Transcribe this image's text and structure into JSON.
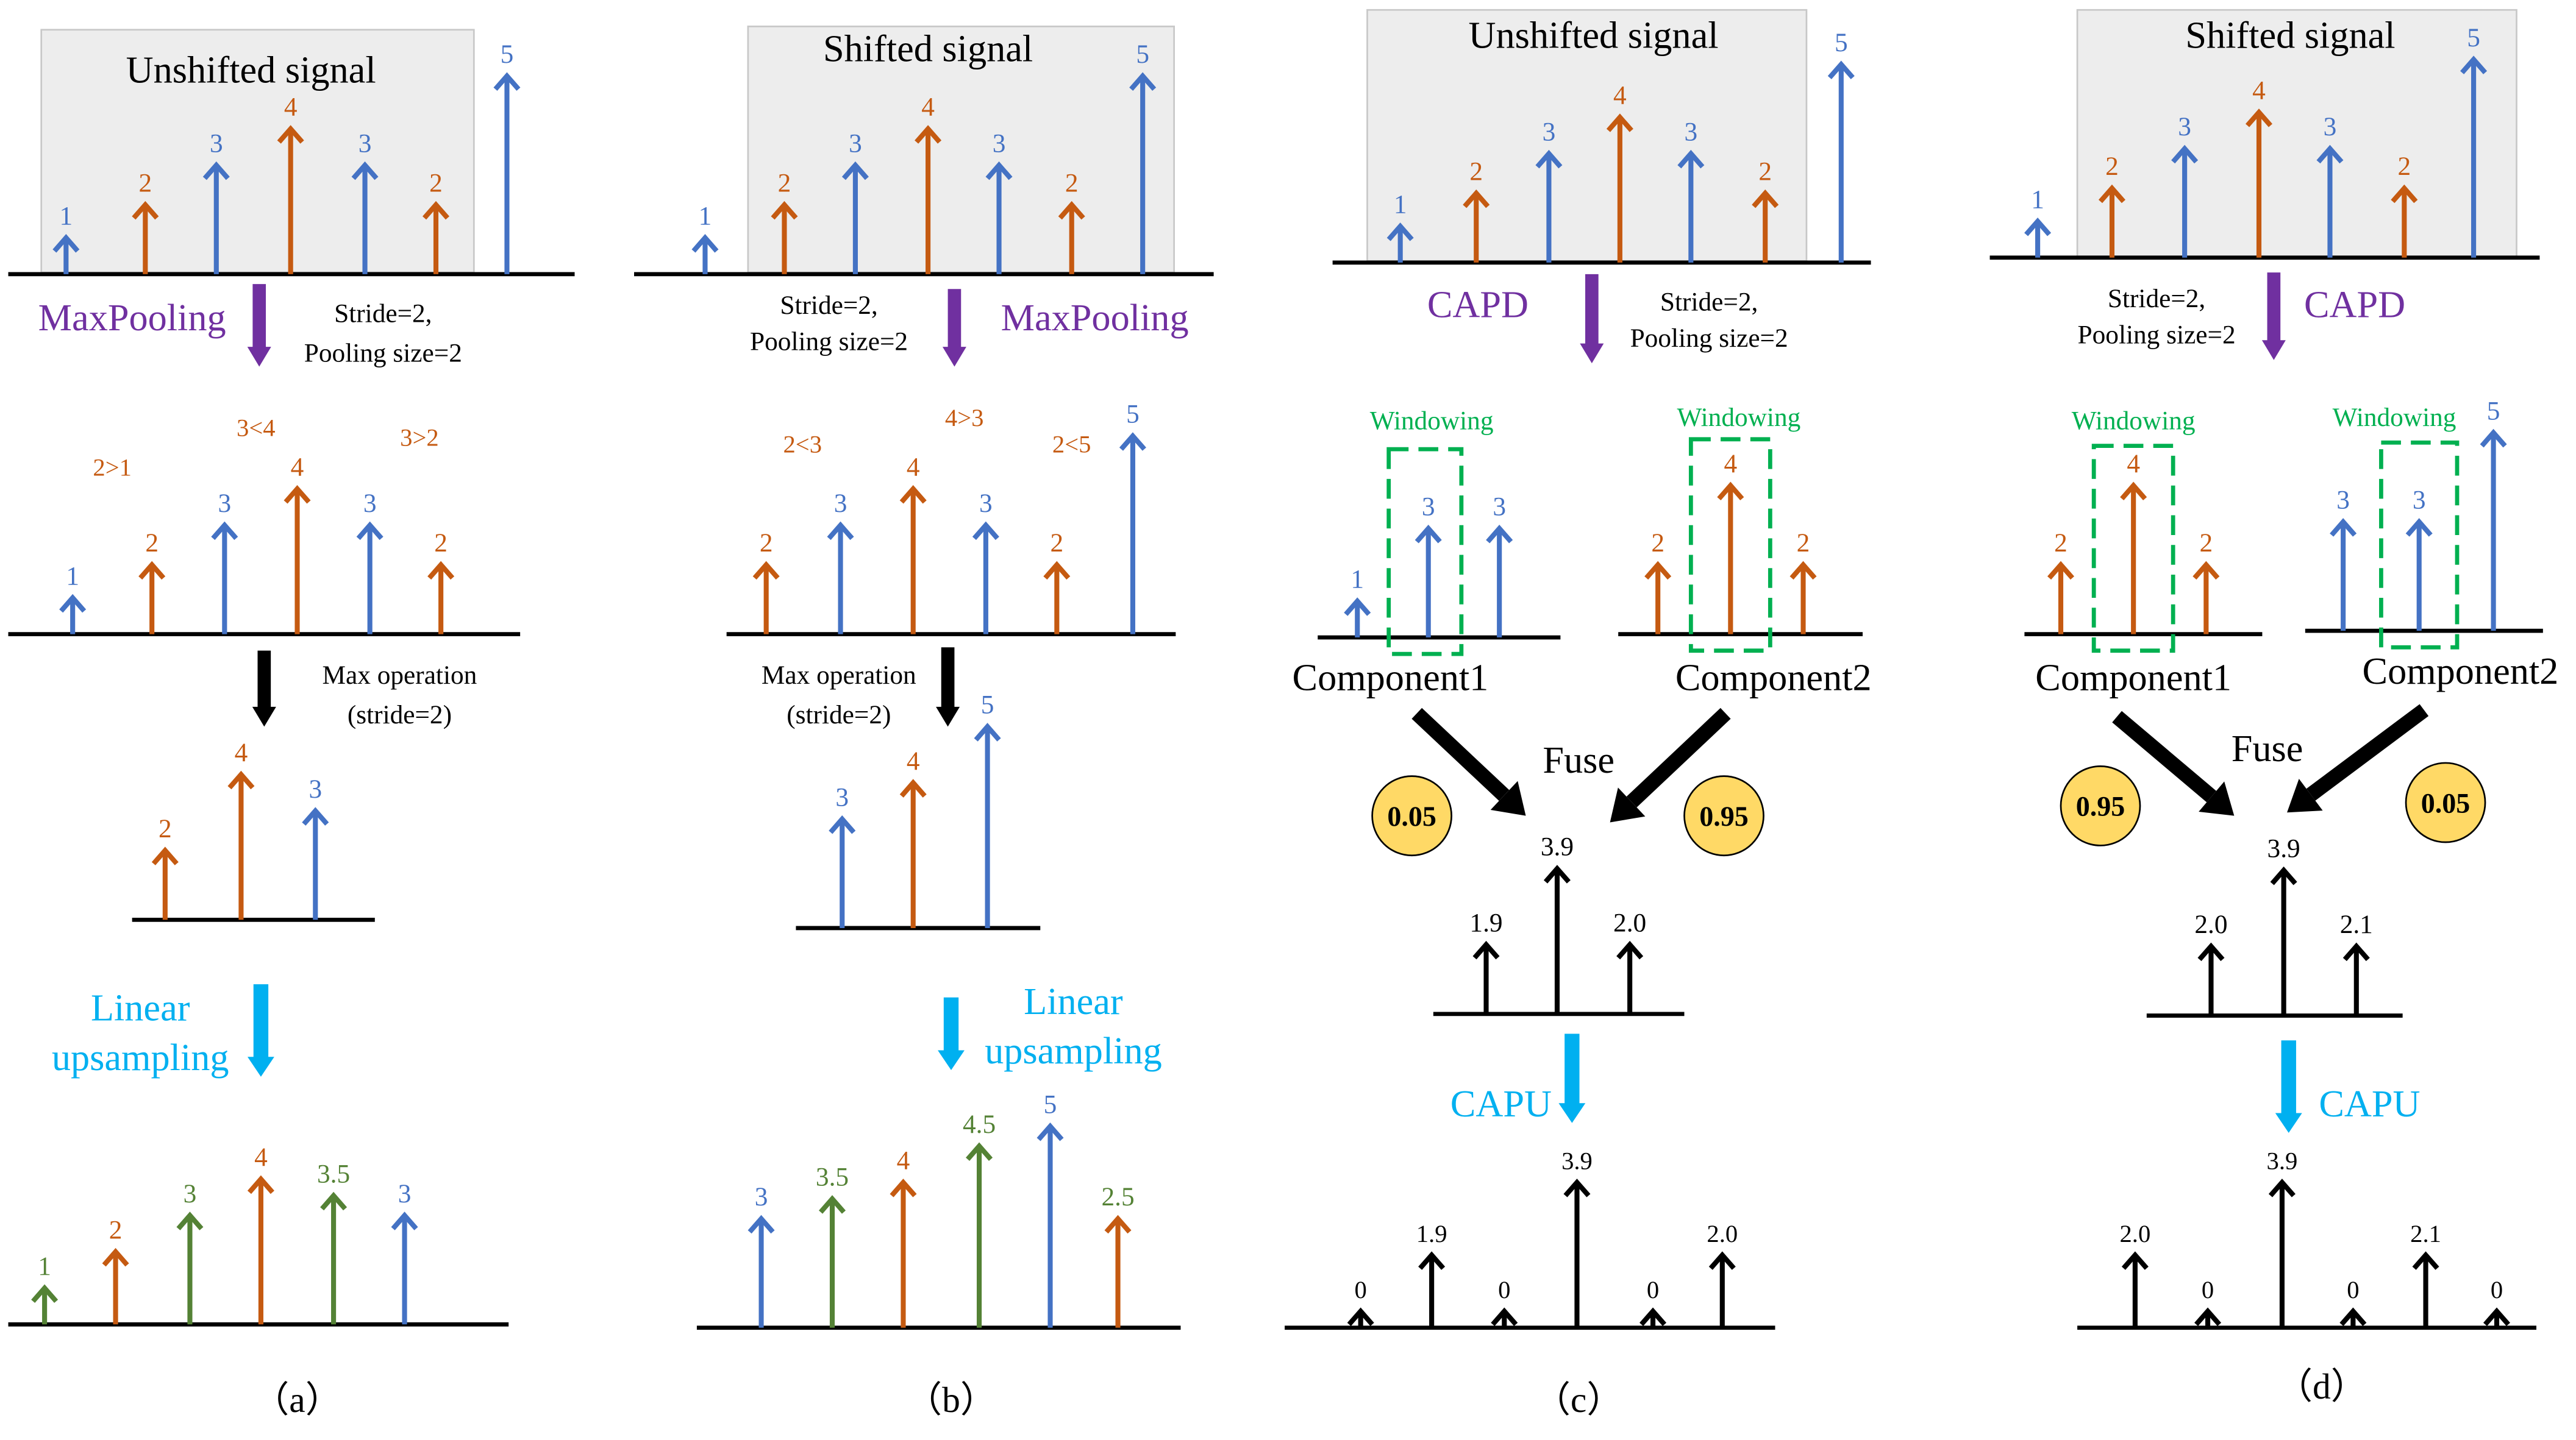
{
  "colors": {
    "blue": "#4472C4",
    "orange": "#C55A11",
    "green": "#548235",
    "black": "#000000",
    "purple": "#7030A0",
    "cyan": "#00B0F0",
    "window_green": "#00B050",
    "box_fill": "#EDEDED",
    "circle_fill": "#FFD966"
  },
  "panels": {
    "a": {
      "title": "Unshifted signal",
      "op_label": "MaxPooling",
      "stride_label_1": "Stride=2,",
      "stride_label_2": "Pooling size=2",
      "comparisons": [
        "2>1",
        "3<4",
        "3>2"
      ],
      "max_label_1": "Max operation",
      "max_label_2": "(stride=2)",
      "up_label_1": "Linear",
      "up_label_2": "upsampling",
      "input": [
        "1",
        "2",
        "3",
        "4",
        "3",
        "2",
        "5"
      ],
      "pairs": [
        "1",
        "2",
        "3",
        "4",
        "3",
        "2"
      ],
      "pooled": [
        "2",
        "4",
        "3"
      ],
      "output": [
        "1",
        "2",
        "3",
        "4",
        "3.5",
        "3"
      ],
      "caption": "（a）"
    },
    "b": {
      "title": "Shifted signal",
      "op_label": "MaxPooling",
      "stride_label_1": "Stride=2,",
      "stride_label_2": "Pooling size=2",
      "comparisons": [
        "2<3",
        "4>3",
        "2<5"
      ],
      "max_label_1": "Max operation",
      "max_label_2": "(stride=2)",
      "up_label_1": "Linear",
      "up_label_2": "upsampling",
      "input": [
        "1",
        "2",
        "3",
        "4",
        "3",
        "2",
        "5"
      ],
      "pairs": [
        "2",
        "3",
        "4",
        "3",
        "2",
        "5"
      ],
      "pooled": [
        "3",
        "4",
        "5"
      ],
      "output": [
        "3",
        "3.5",
        "4",
        "4.5",
        "5",
        "2.5"
      ],
      "caption": "（b）"
    },
    "c": {
      "title": "Unshifted signal",
      "op_label": "CAPD",
      "stride_label_1": "Stride=2,",
      "stride_label_2": "Pooling size=2",
      "window_label": "Windowing",
      "component1": "Component1",
      "component2": "Component2",
      "comp1_values": [
        "1",
        "3",
        "3"
      ],
      "comp2_values": [
        "2",
        "4",
        "2"
      ],
      "fuse_label": "Fuse",
      "weight_left": "0.05",
      "weight_right": "0.95",
      "input": [
        "1",
        "2",
        "3",
        "4",
        "3",
        "2",
        "5"
      ],
      "fused": [
        "1.9",
        "3.9",
        "2.0"
      ],
      "up_label": "CAPU",
      "output": [
        "0",
        "1.9",
        "0",
        "3.9",
        "0",
        "2.0"
      ],
      "caption": "（c）"
    },
    "d": {
      "title": "Shifted signal",
      "op_label": "CAPD",
      "stride_label_1": "Stride=2,",
      "stride_label_2": "Pooling size=2",
      "window_label": "Windowing",
      "component1": "Component1",
      "component2": "Component2",
      "comp1_values": [
        "2",
        "4",
        "2"
      ],
      "comp2_values": [
        "3",
        "3",
        "5"
      ],
      "fuse_label": "Fuse",
      "weight_left": "0.95",
      "weight_right": "0.05",
      "input": [
        "1",
        "2",
        "3",
        "4",
        "3",
        "2",
        "5"
      ],
      "fused": [
        "2.0",
        "3.9",
        "2.1"
      ],
      "up_label": "CAPU",
      "output": [
        "2.0",
        "0",
        "3.9",
        "0",
        "2.1",
        "0"
      ],
      "caption": "（d）"
    }
  }
}
